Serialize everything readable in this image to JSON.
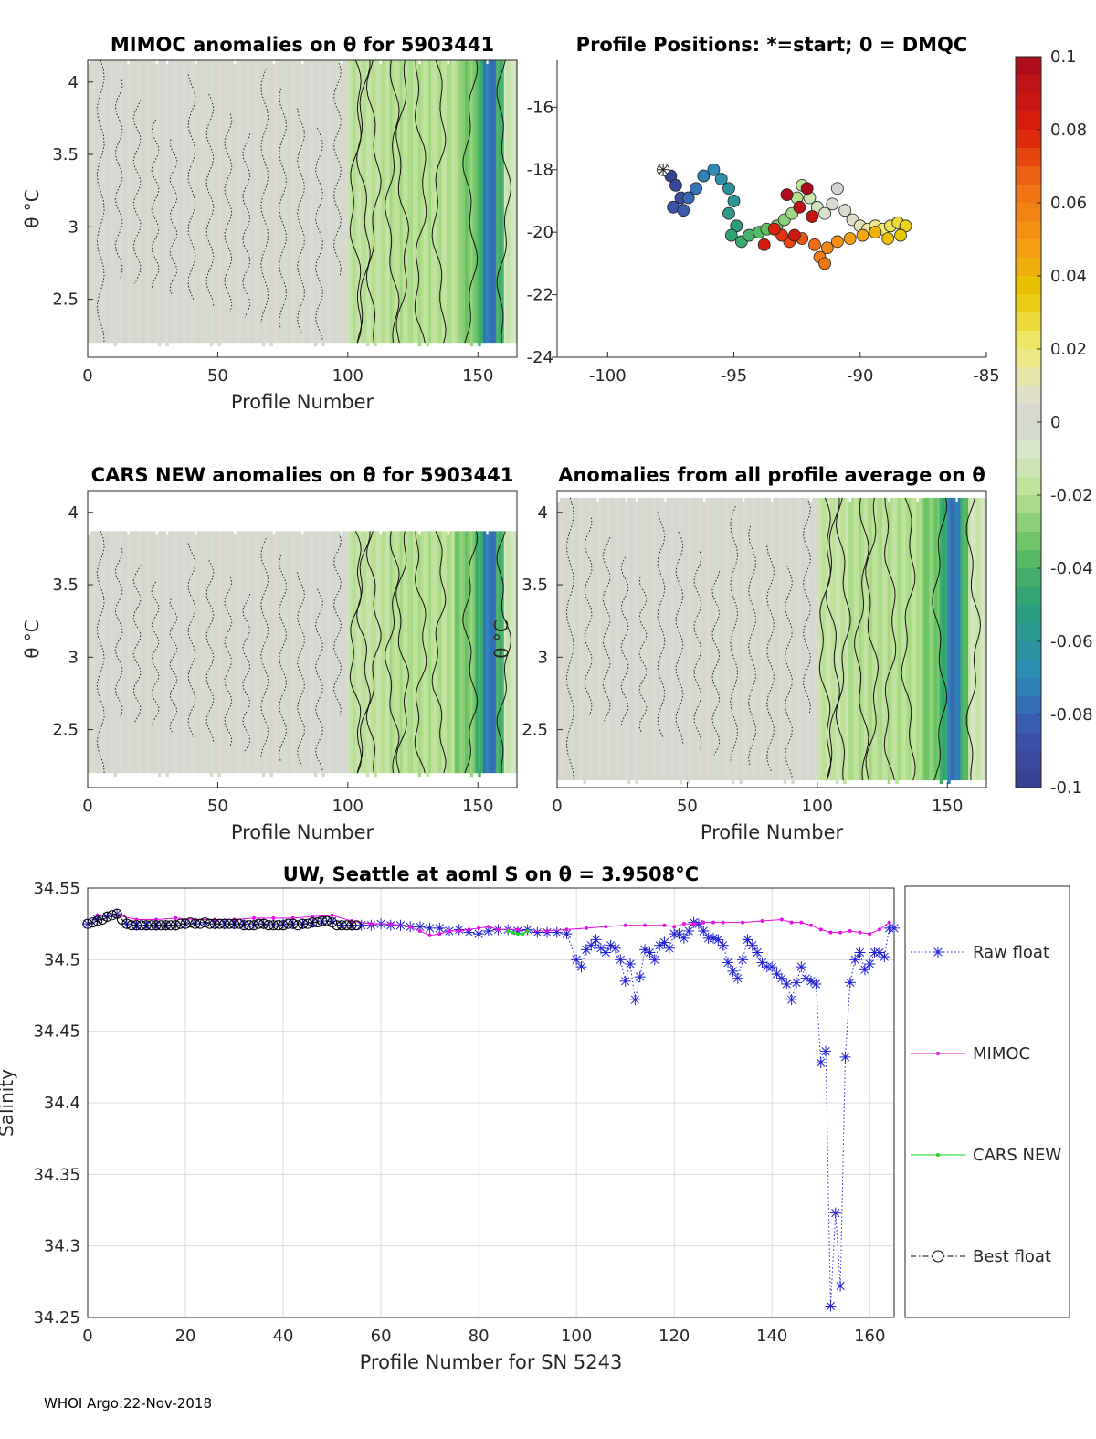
{
  "footer": "WHOI Argo:22-Nov-2018",
  "colorbar": {
    "min": -0.1,
    "max": 0.1,
    "ticks": [
      "0.1",
      "0.08",
      "0.06",
      "0.04",
      "0.02",
      "0",
      "-0.02",
      "-0.04",
      "-0.06",
      "-0.08",
      "-0.1"
    ]
  },
  "chart_data": [
    {
      "type": "heatmap",
      "title": "MIMOC anomalies on θ  for 5903441",
      "xlabel": "Profile Number",
      "ylabel": "θ °C",
      "xlim": [
        0,
        165
      ],
      "ylim": [
        2.1,
        4.15
      ],
      "xticks": [
        "0",
        "50",
        "100",
        "150"
      ],
      "yticks": [
        "2.5",
        "3",
        "3.5",
        "4"
      ],
      "data_top": 4.15,
      "data_bottom": 2.2,
      "bands": [
        {
          "from": 0,
          "to": 100,
          "value": 0.0
        },
        {
          "from": 100,
          "to": 116,
          "value": -0.018
        },
        {
          "from": 116,
          "to": 143,
          "value": -0.02
        },
        {
          "from": 143,
          "to": 150,
          "value": -0.03
        },
        {
          "from": 150,
          "to": 152,
          "value": -0.045
        },
        {
          "from": 152,
          "to": 157,
          "value": -0.075
        },
        {
          "from": 157,
          "to": 160,
          "value": -0.04
        },
        {
          "from": 160,
          "to": 165,
          "value": -0.012
        }
      ]
    },
    {
      "type": "scatter",
      "title": "Profile Positions: *=start; 0 = DMQC",
      "xlim": [
        -102,
        -85
      ],
      "ylim": [
        -24,
        -14.5
      ],
      "xticks": [
        "-100",
        "-95",
        "-90",
        "-85"
      ],
      "yticks": [
        "-16",
        "-18",
        "-20",
        "-22",
        "-24"
      ],
      "start": {
        "x": -97.8,
        "y": -18.0
      },
      "track": [
        [
          -97.8,
          -18.0
        ],
        [
          -97.5,
          -18.2
        ],
        [
          -97.3,
          -18.5
        ],
        [
          -97.1,
          -18.9
        ],
        [
          -97.4,
          -19.2
        ],
        [
          -97.0,
          -19.3
        ],
        [
          -96.8,
          -18.9
        ],
        [
          -96.5,
          -18.6
        ],
        [
          -96.2,
          -18.2
        ],
        [
          -95.8,
          -18.0
        ],
        [
          -95.5,
          -18.3
        ],
        [
          -95.2,
          -18.6
        ],
        [
          -95.0,
          -19.0
        ],
        [
          -95.2,
          -19.4
        ],
        [
          -94.9,
          -19.8
        ],
        [
          -95.1,
          -20.1
        ],
        [
          -94.7,
          -20.3
        ],
        [
          -94.4,
          -20.1
        ],
        [
          -94.0,
          -20.0
        ],
        [
          -93.7,
          -19.9
        ],
        [
          -93.3,
          -19.8
        ],
        [
          -93.0,
          -19.6
        ],
        [
          -92.7,
          -19.4
        ],
        [
          -92.5,
          -18.9
        ],
        [
          -92.3,
          -18.5
        ],
        [
          -92.0,
          -18.9
        ],
        [
          -91.7,
          -19.2
        ],
        [
          -91.4,
          -19.4
        ],
        [
          -91.1,
          -19.1
        ],
        [
          -90.9,
          -18.6
        ],
        [
          -90.6,
          -19.3
        ],
        [
          -90.3,
          -19.6
        ],
        [
          -90.0,
          -19.8
        ],
        [
          -89.7,
          -19.9
        ],
        [
          -89.4,
          -19.8
        ],
        [
          -89.1,
          -19.9
        ],
        [
          -88.8,
          -19.8
        ],
        [
          -88.5,
          -19.7
        ],
        [
          -88.2,
          -19.8
        ],
        [
          -88.4,
          -20.1
        ],
        [
          -88.9,
          -20.2
        ],
        [
          -89.4,
          -20.0
        ],
        [
          -89.9,
          -20.1
        ],
        [
          -90.4,
          -20.2
        ],
        [
          -90.9,
          -20.3
        ],
        [
          -91.3,
          -20.5
        ],
        [
          -91.6,
          -20.8
        ],
        [
          -91.4,
          -21.0
        ],
        [
          -91.8,
          -20.4
        ],
        [
          -92.3,
          -20.2
        ],
        [
          -92.8,
          -20.3
        ],
        [
          -93.1,
          -20.1
        ],
        [
          -93.4,
          -19.9
        ],
        [
          -93.8,
          -20.4
        ],
        [
          -92.6,
          -20.1
        ],
        [
          -91.9,
          -19.5
        ],
        [
          -92.4,
          -19.2
        ],
        [
          -92.9,
          -18.8
        ],
        [
          -92.1,
          -18.6
        ]
      ]
    },
    {
      "type": "heatmap",
      "title": "CARS NEW anomalies on θ for 5903441",
      "xlabel": "Profile Number",
      "ylabel": "θ °C",
      "xlim": [
        0,
        165
      ],
      "ylim": [
        2.1,
        4.15
      ],
      "xticks": [
        "0",
        "50",
        "100",
        "150"
      ],
      "yticks": [
        "2.5",
        "3",
        "3.5",
        "4"
      ],
      "data_top": 3.87,
      "data_bottom": 2.2,
      "bands": [
        {
          "from": 0,
          "to": 100,
          "value": 0.0
        },
        {
          "from": 100,
          "to": 116,
          "value": -0.017
        },
        {
          "from": 116,
          "to": 141,
          "value": -0.02
        },
        {
          "from": 141,
          "to": 149,
          "value": -0.03
        },
        {
          "from": 149,
          "to": 152,
          "value": -0.045
        },
        {
          "from": 152,
          "to": 157,
          "value": -0.075
        },
        {
          "from": 157,
          "to": 160,
          "value": -0.04
        },
        {
          "from": 160,
          "to": 165,
          "value": -0.012
        }
      ]
    },
    {
      "type": "heatmap",
      "title": "Anomalies from all profile average on θ",
      "xlabel": "Profile Number",
      "ylabel": "θ °C",
      "xlim": [
        0,
        165
      ],
      "ylim": [
        2.1,
        4.15
      ],
      "xticks": [
        "0",
        "50",
        "100",
        "150"
      ],
      "yticks": [
        "2.5",
        "3",
        "3.5",
        "4"
      ],
      "data_top": 4.1,
      "data_bottom": 2.15,
      "bands": [
        {
          "from": 0,
          "to": 100,
          "value": 0.0
        },
        {
          "from": 100,
          "to": 112,
          "value": -0.016
        },
        {
          "from": 112,
          "to": 140,
          "value": -0.02
        },
        {
          "from": 140,
          "to": 147,
          "value": -0.03
        },
        {
          "from": 147,
          "to": 150,
          "value": -0.045
        },
        {
          "from": 150,
          "to": 155,
          "value": -0.075
        },
        {
          "from": 155,
          "to": 158,
          "value": -0.04
        },
        {
          "from": 158,
          "to": 165,
          "value": -0.012
        }
      ]
    },
    {
      "type": "line",
      "title": "UW, Seattle at aoml S on θ = 3.9508°C",
      "xlabel": "Profile Number for SN 5243",
      "ylabel": "Salinity",
      "xlim": [
        0,
        165
      ],
      "ylim": [
        34.25,
        34.55
      ],
      "xticks": [
        "0",
        "20",
        "40",
        "60",
        "80",
        "100",
        "120",
        "140",
        "160"
      ],
      "yticks": [
        "34.25",
        "34.3",
        "34.35",
        "34.4",
        "34.45",
        "34.5",
        "34.55"
      ],
      "grid": true,
      "legend": [
        "Raw float",
        "MIMOC",
        "CARS NEW",
        "Best float"
      ],
      "series": [
        {
          "name": "Raw float",
          "color": "#1f1fd6",
          "x": [
            0,
            2,
            4,
            6,
            8,
            10,
            12,
            14,
            16,
            18,
            20,
            22,
            24,
            26,
            28,
            30,
            32,
            34,
            36,
            38,
            40,
            42,
            44,
            46,
            48,
            50,
            52,
            54,
            56,
            58,
            60,
            62,
            64,
            66,
            68,
            70,
            72,
            74,
            76,
            78,
            80,
            82,
            84,
            86,
            88,
            90,
            92,
            94,
            96,
            98,
            100,
            101,
            102,
            103,
            104,
            105,
            106,
            107,
            108,
            109,
            110,
            111,
            112,
            113,
            114,
            115,
            116,
            117,
            118,
            119,
            120,
            121,
            122,
            123,
            124,
            125,
            126,
            127,
            128,
            129,
            130,
            131,
            132,
            133,
            134,
            135,
            136,
            137,
            138,
            139,
            140,
            141,
            142,
            143,
            144,
            145,
            146,
            147,
            148,
            149,
            150,
            151,
            152,
            153,
            154,
            155,
            156,
            157,
            158,
            159,
            160,
            161,
            162,
            163,
            164,
            165
          ],
          "y": [
            34.525,
            34.528,
            34.53,
            34.532,
            34.525,
            34.524,
            34.524,
            34.524,
            34.524,
            34.524,
            34.525,
            34.525,
            34.526,
            34.525,
            34.525,
            34.525,
            34.525,
            34.525,
            34.525,
            34.525,
            34.525,
            34.525,
            34.525,
            34.526,
            34.527,
            34.527,
            34.524,
            34.524,
            34.524,
            34.524,
            34.525,
            34.524,
            34.524,
            34.523,
            34.523,
            34.522,
            34.522,
            34.52,
            34.521,
            34.519,
            34.518,
            34.52,
            34.521,
            34.521,
            34.52,
            34.521,
            34.519,
            34.519,
            34.519,
            34.518,
            34.5,
            34.495,
            34.507,
            34.51,
            34.514,
            34.508,
            34.505,
            34.51,
            34.508,
            34.5,
            34.485,
            34.497,
            34.472,
            34.488,
            34.507,
            34.505,
            34.5,
            34.51,
            34.512,
            34.508,
            34.518,
            34.518,
            34.515,
            34.52,
            34.526,
            34.525,
            34.52,
            34.515,
            34.515,
            34.514,
            34.51,
            34.498,
            34.492,
            34.487,
            34.5,
            34.514,
            34.51,
            34.505,
            34.498,
            34.495,
            34.495,
            34.49,
            34.487,
            34.483,
            34.472,
            34.484,
            34.495,
            34.487,
            34.485,
            34.483,
            34.428,
            34.436,
            34.258,
            34.323,
            34.272,
            34.432,
            34.484,
            34.5,
            34.505,
            34.493,
            34.497,
            34.505,
            34.505,
            34.502,
            34.522,
            34.522
          ],
          "marker": "asterisk",
          "line": "dotted"
        },
        {
          "name": "MIMOC",
          "color": "#e60ee6",
          "x": [
            2,
            6,
            10,
            14,
            18,
            22,
            26,
            30,
            34,
            38,
            42,
            46,
            50,
            54,
            58,
            62,
            66,
            68,
            70,
            72,
            74,
            76,
            78,
            80,
            82,
            84,
            86,
            88,
            90,
            94,
            98,
            102,
            106,
            110,
            114,
            118,
            120,
            122,
            124,
            126,
            128,
            130,
            134,
            138,
            142,
            144,
            146,
            148,
            150,
            152,
            154,
            156,
            158,
            160,
            162,
            164
          ],
          "y": [
            34.531,
            34.531,
            34.528,
            34.528,
            34.529,
            34.528,
            34.528,
            34.528,
            34.529,
            34.529,
            34.529,
            34.53,
            34.531,
            34.527,
            34.525,
            34.525,
            34.523,
            34.52,
            34.517,
            34.518,
            34.52,
            34.52,
            34.521,
            34.522,
            34.523,
            34.521,
            34.521,
            34.521,
            34.52,
            34.52,
            34.521,
            34.522,
            34.523,
            34.524,
            34.524,
            34.524,
            34.523,
            34.525,
            34.525,
            34.526,
            34.526,
            34.526,
            34.526,
            34.527,
            34.528,
            34.526,
            34.526,
            34.524,
            34.521,
            34.519,
            34.519,
            34.52,
            34.519,
            34.518,
            34.521,
            34.526
          ]
        },
        {
          "name": "CARS NEW",
          "color": "#1ad81a",
          "x": [
            86,
            87,
            88,
            89,
            90
          ],
          "y": [
            34.52,
            34.519,
            34.518,
            34.518,
            34.52
          ]
        },
        {
          "name": "Best float",
          "color": "#000000",
          "x": [
            0,
            1,
            2,
            3,
            4,
            5,
            6,
            7,
            8,
            9,
            10,
            11,
            12,
            13,
            14,
            15,
            16,
            17,
            18,
            19,
            20,
            21,
            22,
            23,
            24,
            25,
            26,
            27,
            28,
            29,
            30,
            31,
            32,
            33,
            34,
            35,
            36,
            37,
            38,
            39,
            40,
            41,
            42,
            43,
            44,
            45,
            46,
            47,
            48,
            49,
            50,
            51,
            52,
            53,
            54,
            55
          ],
          "y": [
            34.525,
            34.526,
            34.527,
            34.528,
            34.53,
            34.531,
            34.532,
            34.528,
            34.525,
            34.524,
            34.524,
            34.524,
            34.524,
            34.524,
            34.524,
            34.524,
            34.524,
            34.524,
            34.524,
            34.525,
            34.525,
            34.526,
            34.525,
            34.525,
            34.526,
            34.525,
            34.525,
            34.525,
            34.525,
            34.525,
            34.525,
            34.525,
            34.524,
            34.524,
            34.524,
            34.525,
            34.525,
            34.524,
            34.524,
            34.524,
            34.524,
            34.525,
            34.525,
            34.524,
            34.525,
            34.525,
            34.526,
            34.526,
            34.527,
            34.527,
            34.526,
            34.524,
            34.524,
            34.524,
            34.524,
            34.524
          ],
          "marker": "circle",
          "line": "dashdot"
        }
      ]
    }
  ]
}
